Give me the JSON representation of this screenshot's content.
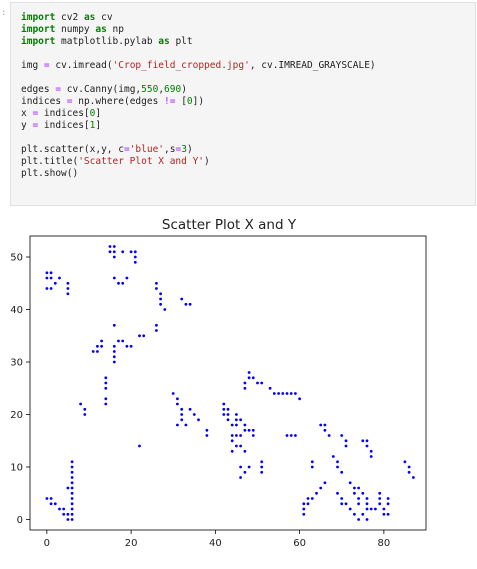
{
  "cell": {
    "prompt": ":",
    "lines": [
      [
        {
          "t": "import",
          "c": "kw"
        },
        {
          "t": " cv2 "
        },
        {
          "t": "as",
          "c": "kw"
        },
        {
          "t": " cv"
        }
      ],
      [
        {
          "t": "import",
          "c": "kw"
        },
        {
          "t": " numpy "
        },
        {
          "t": "as",
          "c": "kw"
        },
        {
          "t": " np"
        }
      ],
      [
        {
          "t": "import",
          "c": "kw"
        },
        {
          "t": " matplotlib.pylab "
        },
        {
          "t": "as",
          "c": "kw"
        },
        {
          "t": " plt"
        }
      ],
      [],
      [
        {
          "t": "img "
        },
        {
          "t": "=",
          "c": "op"
        },
        {
          "t": " cv.imread("
        },
        {
          "t": "'Crop_field_cropped.jpg'",
          "c": "str"
        },
        {
          "t": ", cv.IMREAD_GRAYSCALE)"
        }
      ],
      [],
      [
        {
          "t": "edges "
        },
        {
          "t": "=",
          "c": "op"
        },
        {
          "t": " cv.Canny(img,"
        },
        {
          "t": "550",
          "c": "num"
        },
        {
          "t": ","
        },
        {
          "t": "690",
          "c": "num"
        },
        {
          "t": ")"
        }
      ],
      [
        {
          "t": "indices "
        },
        {
          "t": "=",
          "c": "op"
        },
        {
          "t": " np.where(edges "
        },
        {
          "t": "!=",
          "c": "op"
        },
        {
          "t": " ["
        },
        {
          "t": "0",
          "c": "num"
        },
        {
          "t": "])"
        }
      ],
      [
        {
          "t": "x "
        },
        {
          "t": "=",
          "c": "op"
        },
        {
          "t": " indices["
        },
        {
          "t": "0",
          "c": "num"
        },
        {
          "t": "]"
        }
      ],
      [
        {
          "t": "y "
        },
        {
          "t": "=",
          "c": "op"
        },
        {
          "t": " indices["
        },
        {
          "t": "1",
          "c": "num"
        },
        {
          "t": "]"
        }
      ],
      [],
      [
        {
          "t": "plt.scatter(x,y, c"
        },
        {
          "t": "=",
          "c": "op"
        },
        {
          "t": "'blue'",
          "c": "str"
        },
        {
          "t": ",s"
        },
        {
          "t": "=",
          "c": "op"
        },
        {
          "t": "3",
          "c": "num"
        },
        {
          "t": ")"
        }
      ],
      [
        {
          "t": "plt.title("
        },
        {
          "t": "'Scatter Plot X and Y'",
          "c": "str"
        },
        {
          "t": ")"
        }
      ],
      [
        {
          "t": "plt.show()"
        }
      ]
    ]
  },
  "chart_data": {
    "type": "scatter",
    "title": "Scatter Plot X and Y",
    "xlabel": "",
    "ylabel": "",
    "xlim": [
      -4,
      90
    ],
    "ylim": [
      -2,
      54
    ],
    "xticks": [
      0,
      20,
      40,
      60,
      80
    ],
    "yticks": [
      0,
      10,
      20,
      30,
      40,
      50
    ],
    "grid": false,
    "color": "#0000ff",
    "points": [
      [
        0,
        47
      ],
      [
        1,
        47
      ],
      [
        0,
        46
      ],
      [
        1,
        46
      ],
      [
        0,
        44
      ],
      [
        1,
        44
      ],
      [
        2,
        45
      ],
      [
        3,
        46
      ],
      [
        5,
        45
      ],
      [
        5,
        44
      ],
      [
        5,
        43
      ],
      [
        0,
        4
      ],
      [
        1,
        4
      ],
      [
        1,
        3
      ],
      [
        2,
        3
      ],
      [
        3,
        2
      ],
      [
        4,
        2
      ],
      [
        4,
        1
      ],
      [
        5,
        0
      ],
      [
        5,
        1
      ],
      [
        6,
        0
      ],
      [
        6,
        1
      ],
      [
        6,
        2
      ],
      [
        6,
        3
      ],
      [
        6,
        4
      ],
      [
        6,
        5
      ],
      [
        6,
        6
      ],
      [
        6,
        7
      ],
      [
        6,
        8
      ],
      [
        6,
        9
      ],
      [
        6,
        10
      ],
      [
        6,
        11
      ],
      [
        5,
        6
      ],
      [
        8,
        22
      ],
      [
        9,
        21
      ],
      [
        9,
        20
      ],
      [
        11,
        32
      ],
      [
        12,
        32
      ],
      [
        12,
        33
      ],
      [
        13,
        34
      ],
      [
        13,
        33
      ],
      [
        14,
        22
      ],
      [
        14,
        23
      ],
      [
        14,
        25
      ],
      [
        14,
        26
      ],
      [
        14,
        27
      ],
      [
        15,
        52
      ],
      [
        16,
        52
      ],
      [
        16,
        51
      ],
      [
        15,
        51
      ],
      [
        16,
        50
      ],
      [
        18,
        51
      ],
      [
        20,
        51
      ],
      [
        21,
        51
      ],
      [
        21,
        50
      ],
      [
        21,
        49
      ],
      [
        16,
        46
      ],
      [
        17,
        45
      ],
      [
        18,
        45
      ],
      [
        19,
        46
      ],
      [
        16,
        37
      ],
      [
        16,
        33
      ],
      [
        16,
        32
      ],
      [
        16,
        31
      ],
      [
        16,
        30
      ],
      [
        17,
        34
      ],
      [
        18,
        34
      ],
      [
        19,
        33
      ],
      [
        20,
        33
      ],
      [
        22,
        35
      ],
      [
        23,
        35
      ],
      [
        22,
        14
      ],
      [
        26,
        45
      ],
      [
        26,
        44
      ],
      [
        27,
        43
      ],
      [
        27,
        42
      ],
      [
        27,
        41
      ],
      [
        28,
        40
      ],
      [
        26,
        37
      ],
      [
        26,
        36
      ],
      [
        32,
        42
      ],
      [
        33,
        41
      ],
      [
        34,
        41
      ],
      [
        30,
        24
      ],
      [
        31,
        23
      ],
      [
        31,
        22
      ],
      [
        32,
        21
      ],
      [
        32,
        20
      ],
      [
        32,
        19
      ],
      [
        31,
        18
      ],
      [
        33,
        18
      ],
      [
        34,
        21
      ],
      [
        35,
        20
      ],
      [
        36,
        19
      ],
      [
        38,
        17
      ],
      [
        38,
        16
      ],
      [
        42,
        22
      ],
      [
        42,
        21
      ],
      [
        43,
        21
      ],
      [
        42,
        20
      ],
      [
        43,
        20
      ],
      [
        43,
        19
      ],
      [
        44,
        18
      ],
      [
        45,
        20
      ],
      [
        45,
        19
      ],
      [
        45,
        18
      ],
      [
        44,
        16
      ],
      [
        45,
        16
      ],
      [
        46,
        16
      ],
      [
        44,
        15
      ],
      [
        45,
        14
      ],
      [
        44,
        13
      ],
      [
        46,
        14
      ],
      [
        47,
        13
      ],
      [
        46,
        19
      ],
      [
        47,
        18
      ],
      [
        47,
        17
      ],
      [
        48,
        17
      ],
      [
        46,
        10
      ],
      [
        47,
        9
      ],
      [
        46,
        8
      ],
      [
        48,
        10
      ],
      [
        47,
        26
      ],
      [
        48,
        27
      ],
      [
        48,
        28
      ],
      [
        49,
        27
      ],
      [
        50,
        26
      ],
      [
        51,
        26
      ],
      [
        47,
        25
      ],
      [
        49,
        17
      ],
      [
        49,
        16
      ],
      [
        51,
        11
      ],
      [
        51,
        10
      ],
      [
        51,
        9
      ],
      [
        53,
        25
      ],
      [
        54,
        24
      ],
      [
        55,
        24
      ],
      [
        56,
        24
      ],
      [
        57,
        24
      ],
      [
        58,
        24
      ],
      [
        59,
        24
      ],
      [
        60,
        23
      ],
      [
        57,
        16
      ],
      [
        58,
        16
      ],
      [
        59,
        16
      ],
      [
        61,
        1
      ],
      [
        61,
        2
      ],
      [
        61,
        3
      ],
      [
        62,
        3
      ],
      [
        62,
        4
      ],
      [
        63,
        4
      ],
      [
        64,
        5
      ],
      [
        65,
        6
      ],
      [
        66,
        7
      ],
      [
        63,
        11
      ],
      [
        63,
        10
      ],
      [
        65,
        18
      ],
      [
        66,
        18
      ],
      [
        66,
        17
      ],
      [
        67,
        16
      ],
      [
        68,
        12
      ],
      [
        69,
        11
      ],
      [
        69,
        10
      ],
      [
        70,
        9
      ],
      [
        69,
        5
      ],
      [
        70,
        4
      ],
      [
        70,
        3
      ],
      [
        71,
        3
      ],
      [
        72,
        2
      ],
      [
        70,
        16
      ],
      [
        71,
        15
      ],
      [
        71,
        14
      ],
      [
        72,
        7
      ],
      [
        73,
        6
      ],
      [
        74,
        6
      ],
      [
        73,
        5
      ],
      [
        74,
        4
      ],
      [
        74,
        3
      ],
      [
        73,
        1
      ],
      [
        74,
        0
      ],
      [
        75,
        1
      ],
      [
        76,
        0
      ],
      [
        76,
        2
      ],
      [
        76,
        3
      ],
      [
        77,
        2
      ],
      [
        75,
        15
      ],
      [
        76,
        15
      ],
      [
        76,
        14
      ],
      [
        77,
        13
      ],
      [
        77,
        12
      ],
      [
        75,
        5
      ],
      [
        76,
        4
      ],
      [
        78,
        2
      ],
      [
        79,
        3
      ],
      [
        79,
        4
      ],
      [
        79,
        5
      ],
      [
        80,
        2
      ],
      [
        80,
        1
      ],
      [
        81,
        1
      ],
      [
        81,
        3
      ],
      [
        81,
        4
      ],
      [
        85,
        11
      ],
      [
        86,
        10
      ],
      [
        86,
        9
      ],
      [
        87,
        8
      ]
    ]
  }
}
